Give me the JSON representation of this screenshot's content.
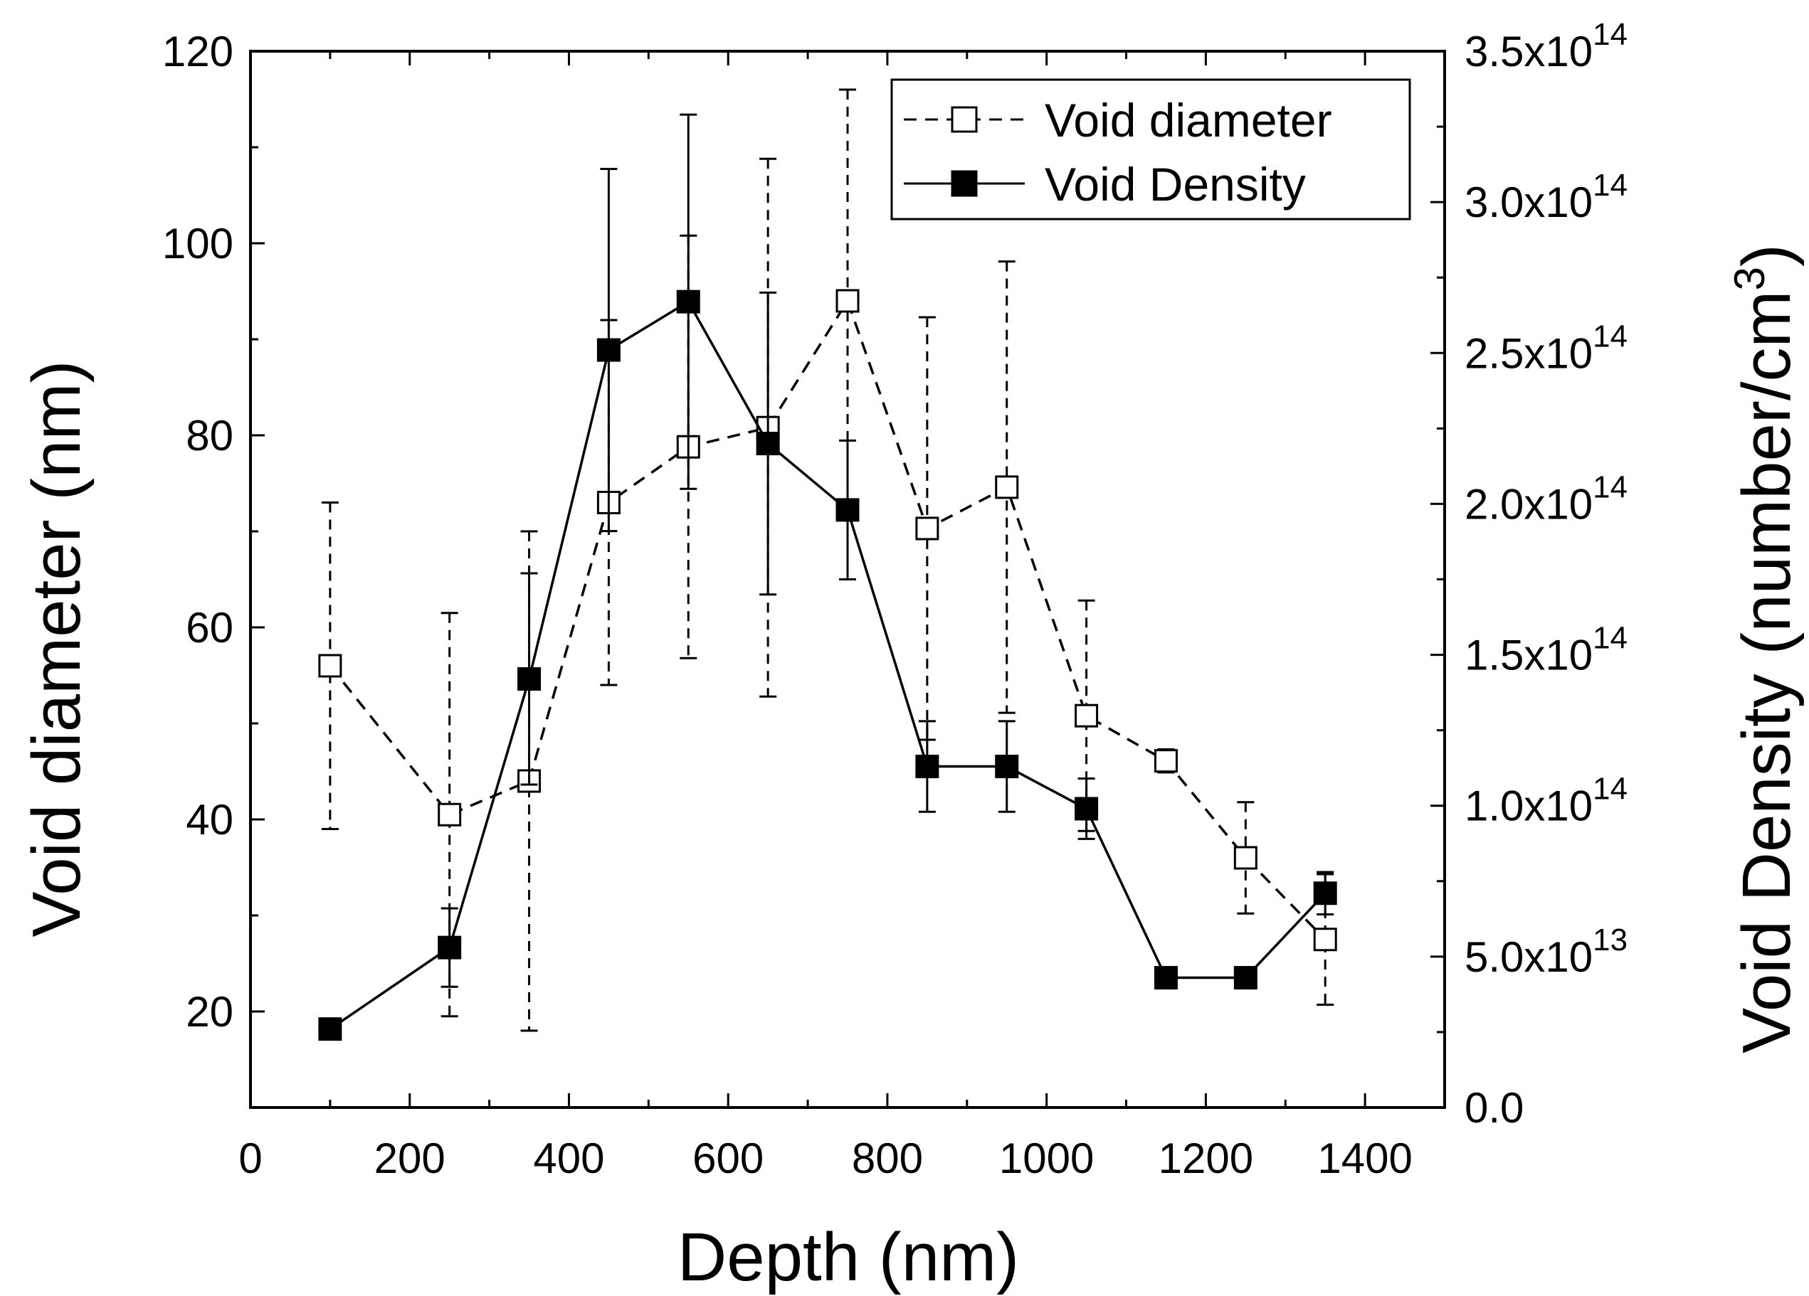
{
  "chart_data": {
    "type": "line",
    "title": "",
    "xlabel": "Depth (nm)",
    "ylabel": "Void diameter (nm)",
    "y2label": "Void Density (number/cm³)",
    "xlim": [
      0,
      1500
    ],
    "ylim": [
      10,
      120
    ],
    "y2lim": [
      0,
      350000000000000.0
    ],
    "x_ticks": [
      0,
      200,
      400,
      600,
      800,
      1000,
      1200,
      1400
    ],
    "y_ticks": [
      20,
      40,
      60,
      80,
      100,
      120
    ],
    "y2_ticks": [
      {
        "value": 0,
        "mantissa": "0.0",
        "exp": ""
      },
      {
        "value": 50000000000000.0,
        "mantissa": "5.0x10",
        "exp": "13"
      },
      {
        "value": 100000000000000.0,
        "mantissa": "1.0x10",
        "exp": "14"
      },
      {
        "value": 150000000000000.0,
        "mantissa": "1.5x10",
        "exp": "14"
      },
      {
        "value": 200000000000000.0,
        "mantissa": "2.0x10",
        "exp": "14"
      },
      {
        "value": 250000000000000.0,
        "mantissa": "2.5x10",
        "exp": "14"
      },
      {
        "value": 300000000000000.0,
        "mantissa": "3.0x10",
        "exp": "14"
      },
      {
        "value": 350000000000000.0,
        "mantissa": "3.5x10",
        "exp": "14"
      }
    ],
    "legend": {
      "position": "top-right"
    },
    "series": [
      {
        "name": "Void diameter",
        "axis": "left",
        "line": "dashed",
        "marker": "open-square",
        "x": [
          100,
          250,
          350,
          450,
          550,
          650,
          750,
          850,
          950,
          1050,
          1150,
          1250,
          1350
        ],
        "y": [
          56,
          40.5,
          44,
          73,
          78.8,
          80.8,
          94,
          70.3,
          74.6,
          50.8,
          46.1,
          36,
          27.5
        ],
        "err": [
          17,
          21,
          26,
          19,
          22,
          28,
          22,
          22,
          23.5,
          12,
          1.2,
          5.8,
          6.8
        ]
      },
      {
        "name": "Void Density",
        "axis": "right",
        "line": "solid",
        "marker": "filled-square",
        "x": [
          100,
          250,
          350,
          450,
          550,
          650,
          750,
          850,
          950,
          1050,
          1150,
          1250,
          1350
        ],
        "y": [
          26000000000000.0,
          53000000000000.0,
          142000000000000.0,
          251000000000000.0,
          267000000000000.0,
          220000000000000.0,
          198000000000000.0,
          113000000000000.0,
          113000000000000.0,
          99000000000000.0,
          43000000000000.0,
          43000000000000.0,
          71000000000000.0
        ],
        "err": [
          3000000000000.0,
          13000000000000.0,
          35000000000000.0,
          60000000000000.0,
          62000000000000.0,
          50000000000000.0,
          23000000000000.0,
          15000000000000.0,
          15000000000000.0,
          10000000000000.0,
          3000000000000.0,
          3000000000000.0,
          7000000000000.0
        ]
      }
    ]
  }
}
